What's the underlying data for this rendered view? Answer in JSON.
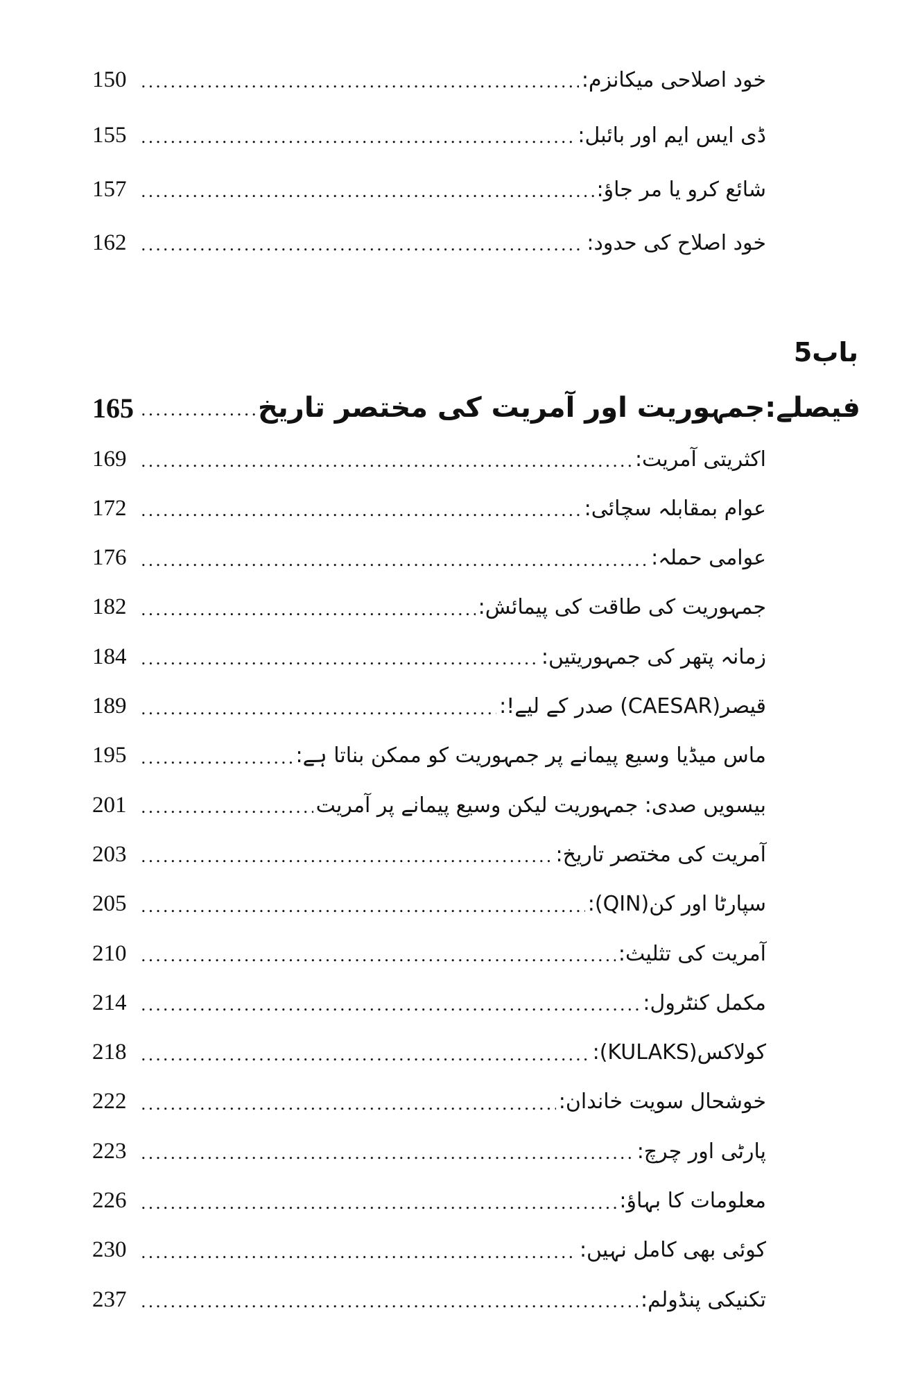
{
  "top_entries": [
    {
      "title": "خود اصلاحی میکانزم:",
      "page": "150"
    },
    {
      "title": "ڈی ایس ایم اور بائبل:",
      "page": "155"
    },
    {
      "title": "شائع کرو یا مر جاؤ:",
      "page": "157"
    },
    {
      "title": "خود اصلاح کی حدود:",
      "page": "162"
    }
  ],
  "chapter": {
    "label": "باب5",
    "title": "فیصلے:جمہوریت اور آمریت کی مختصر تاریخ",
    "page": "165"
  },
  "entries": [
    {
      "title": "اکثریتی آمریت:",
      "page": "169"
    },
    {
      "title": "عوام بمقابلہ سچائی:",
      "page": "172"
    },
    {
      "title": "عوامی حملہ:",
      "page": "176"
    },
    {
      "title": "جمہوریت کی طاقت کی پیمائش:",
      "page": "182"
    },
    {
      "title": "زمانہ پتھر کی جمہوریتیں:",
      "page": "184"
    },
    {
      "title": "قیصر(CAESAR) صدر کے لیے!:",
      "page": "189"
    },
    {
      "title": "ماس میڈیا وسیع پیمانے پر جمہوریت کو ممکن بناتا ہے:",
      "page": "195"
    },
    {
      "title": "بیسویں صدی: جمہوریت لیکن وسیع پیمانے پر آمریت",
      "page": "201"
    },
    {
      "title": "آمریت کی مختصر تاریخ:",
      "page": "203"
    },
    {
      "title": "سپارٹا اور کن(QIN):",
      "page": "205"
    },
    {
      "title": "آمریت کی تثلیث:",
      "page": "210"
    },
    {
      "title": "مکمل کنٹرول:",
      "page": "214"
    },
    {
      "title": "کولاکس(KULAKS):",
      "page": "218"
    },
    {
      "title": "خوشحال سویت خاندان:",
      "page": "222"
    },
    {
      "title": "پارٹی اور چرچ:",
      "page": "223"
    },
    {
      "title": "معلومات کا بہاؤ:",
      "page": "226"
    },
    {
      "title": "کوئی بھی کامل نہیں:",
      "page": "230"
    },
    {
      "title": "تکنیکی پنڈولم:",
      "page": "237"
    }
  ]
}
